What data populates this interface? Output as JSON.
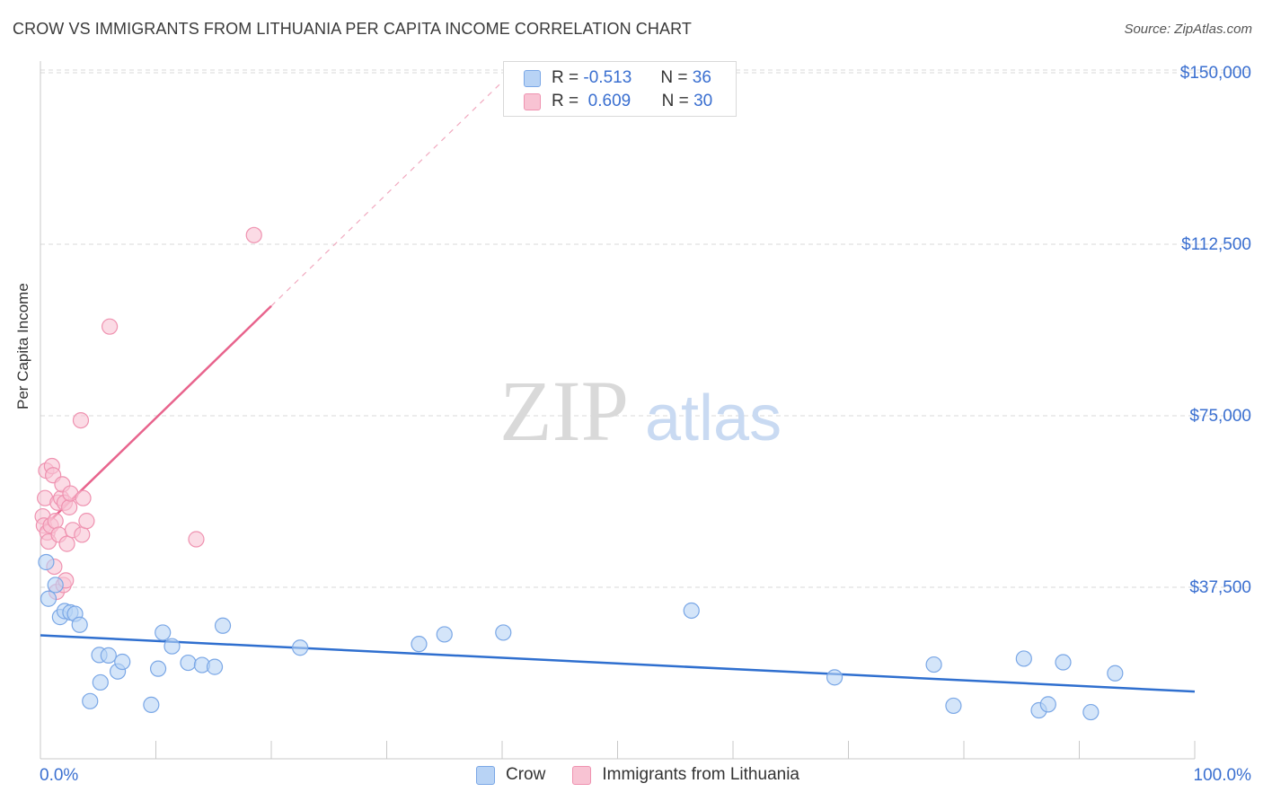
{
  "title": "CROW VS IMMIGRANTS FROM LITHUANIA PER CAPITA INCOME CORRELATION CHART",
  "source": "Source: ZipAtlas.com",
  "watermark": {
    "zip": "ZIP",
    "atlas": "atlas"
  },
  "legend": {
    "rows": [
      {
        "r_label": "R =",
        "r_value": "-0.513",
        "n_label": "N =",
        "n_value": "36"
      },
      {
        "r_label": "R =",
        "r_value": "0.609",
        "n_label": "N =",
        "n_value": "30"
      }
    ]
  },
  "colors": {
    "crow_fill": "#b8d3f5",
    "crow_stroke": "#7aa7e6",
    "crow_line": "#2f6fcf",
    "lith_fill": "#f8c3d3",
    "lith_stroke": "#ef92b0",
    "lith_line": "#e8648d",
    "tick_label": "#3a6fd0",
    "grid": "#d8d8d8"
  },
  "chart_data": {
    "type": "scatter",
    "title": "CROW VS IMMIGRANTS FROM LITHUANIA PER CAPITA INCOME CORRELATION CHART",
    "xlabel": "",
    "ylabel": "Per Capita Income",
    "xlim": [
      0,
      100
    ],
    "ylim": [
      0,
      155000
    ],
    "x_tick_labels": [
      "0.0%",
      "100.0%"
    ],
    "y_ticks": [
      37500,
      75000,
      112500,
      150000
    ],
    "y_tick_labels": [
      "$37,500",
      "$75,000",
      "$112,500",
      "$150,000"
    ],
    "grid": "horizontal dashed",
    "legend_position": "top-center",
    "series": [
      {
        "name": "Crow",
        "r": -0.513,
        "n": 36,
        "trend": {
          "x": [
            0,
            100
          ],
          "y": [
            27000,
            14700
          ]
        },
        "points": [
          {
            "x": 0.5,
            "y": 43000
          },
          {
            "x": 0.7,
            "y": 35000
          },
          {
            "x": 1.3,
            "y": 38000
          },
          {
            "x": 1.7,
            "y": 31000
          },
          {
            "x": 2.1,
            "y": 32300
          },
          {
            "x": 2.6,
            "y": 32000
          },
          {
            "x": 3.0,
            "y": 31700
          },
          {
            "x": 3.4,
            "y": 29300
          },
          {
            "x": 4.3,
            "y": 12600
          },
          {
            "x": 5.1,
            "y": 22700
          },
          {
            "x": 5.2,
            "y": 16700
          },
          {
            "x": 5.9,
            "y": 22600
          },
          {
            "x": 6.7,
            "y": 19100
          },
          {
            "x": 7.1,
            "y": 21200
          },
          {
            "x": 9.6,
            "y": 11800
          },
          {
            "x": 10.2,
            "y": 19700
          },
          {
            "x": 10.6,
            "y": 27600
          },
          {
            "x": 11.4,
            "y": 24600
          },
          {
            "x": 12.8,
            "y": 21000
          },
          {
            "x": 14.0,
            "y": 20500
          },
          {
            "x": 15.1,
            "y": 20100
          },
          {
            "x": 15.8,
            "y": 29100
          },
          {
            "x": 22.5,
            "y": 24300
          },
          {
            "x": 32.8,
            "y": 25100
          },
          {
            "x": 35.0,
            "y": 27200
          },
          {
            "x": 40.1,
            "y": 27600
          },
          {
            "x": 56.4,
            "y": 32400
          },
          {
            "x": 68.8,
            "y": 17800
          },
          {
            "x": 77.4,
            "y": 20600
          },
          {
            "x": 79.1,
            "y": 11600
          },
          {
            "x": 85.2,
            "y": 21900
          },
          {
            "x": 86.5,
            "y": 10600
          },
          {
            "x": 87.3,
            "y": 11900
          },
          {
            "x": 88.6,
            "y": 21100
          },
          {
            "x": 91.0,
            "y": 10200
          },
          {
            "x": 93.1,
            "y": 18700
          }
        ]
      },
      {
        "name": "Immigrants from Lithuania",
        "r": 0.609,
        "n": 30,
        "trend": {
          "x": [
            0,
            20
          ],
          "y": [
            50000,
            99000
          ]
        },
        "trend_extension": {
          "x": [
            20,
            40
          ],
          "y": [
            99000,
            148000
          ]
        },
        "points": [
          {
            "x": 0.2,
            "y": 53000
          },
          {
            "x": 0.3,
            "y": 51000
          },
          {
            "x": 0.4,
            "y": 57000
          },
          {
            "x": 0.5,
            "y": 63000
          },
          {
            "x": 0.6,
            "y": 49500
          },
          {
            "x": 0.7,
            "y": 47500
          },
          {
            "x": 0.9,
            "y": 51000
          },
          {
            "x": 1.0,
            "y": 64000
          },
          {
            "x": 1.1,
            "y": 62000
          },
          {
            "x": 1.2,
            "y": 42000
          },
          {
            "x": 1.3,
            "y": 52000
          },
          {
            "x": 1.4,
            "y": 36500
          },
          {
            "x": 1.5,
            "y": 56000
          },
          {
            "x": 1.6,
            "y": 49000
          },
          {
            "x": 1.8,
            "y": 57000
          },
          {
            "x": 1.9,
            "y": 60000
          },
          {
            "x": 2.0,
            "y": 38000
          },
          {
            "x": 2.1,
            "y": 56000
          },
          {
            "x": 2.2,
            "y": 39000
          },
          {
            "x": 2.3,
            "y": 47000
          },
          {
            "x": 2.5,
            "y": 55000
          },
          {
            "x": 2.6,
            "y": 58000
          },
          {
            "x": 2.8,
            "y": 50000
          },
          {
            "x": 3.5,
            "y": 74000
          },
          {
            "x": 3.6,
            "y": 49000
          },
          {
            "x": 3.7,
            "y": 57000
          },
          {
            "x": 4.0,
            "y": 52000
          },
          {
            "x": 6.0,
            "y": 94500
          },
          {
            "x": 13.5,
            "y": 48000
          },
          {
            "x": 18.5,
            "y": 114500
          }
        ]
      }
    ]
  }
}
